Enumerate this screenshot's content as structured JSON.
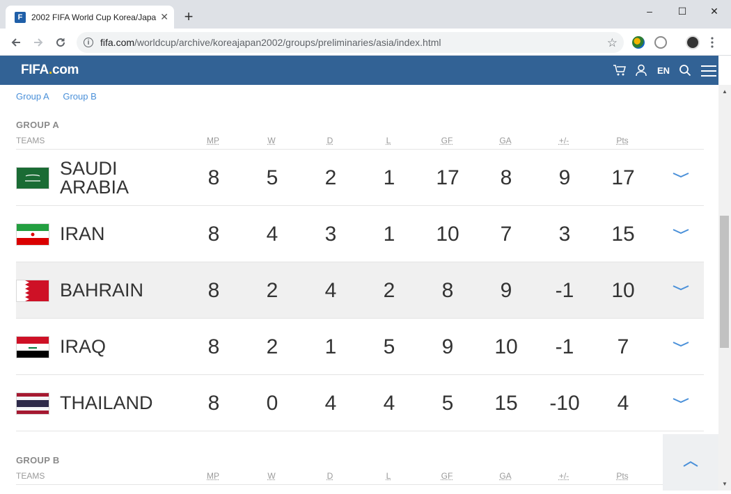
{
  "browser": {
    "tab_title": "2002 FIFA World Cup Korea/Japa",
    "tab_favicon": "F",
    "newtab_label": "+",
    "url_host": "fifa.com",
    "url_path": "/worldcup/archive/koreajapan2002/groups/preliminaries/asia/index.html",
    "minimize": "–",
    "maximize": "☐",
    "close": "✕"
  },
  "site": {
    "logo_main": "FIFA",
    "logo_dot": ".",
    "logo_suffix": "com",
    "lang": "EN"
  },
  "group_links": [
    "Group A",
    "Group B"
  ],
  "columns": [
    "MP",
    "W",
    "D",
    "L",
    "GF",
    "GA",
    "+/-",
    "Pts"
  ],
  "teams_header": "TEAMS",
  "group_a": {
    "title": "GROUP A",
    "rows": [
      {
        "team_line1": "SAUDI",
        "team_line2": "ARABIA",
        "flag": "saudi-arabia",
        "mp": "8",
        "w": "5",
        "d": "2",
        "l": "1",
        "gf": "17",
        "ga": "8",
        "diff": "9",
        "pts": "17"
      },
      {
        "team_line1": "IRAN",
        "team_line2": "",
        "flag": "iran",
        "mp": "8",
        "w": "4",
        "d": "3",
        "l": "1",
        "gf": "10",
        "ga": "7",
        "diff": "3",
        "pts": "15"
      },
      {
        "team_line1": "BAHRAIN",
        "team_line2": "",
        "flag": "bahrain",
        "mp": "8",
        "w": "2",
        "d": "4",
        "l": "2",
        "gf": "8",
        "ga": "9",
        "diff": "-1",
        "pts": "10"
      },
      {
        "team_line1": "IRAQ",
        "team_line2": "",
        "flag": "iraq",
        "mp": "8",
        "w": "2",
        "d": "1",
        "l": "5",
        "gf": "9",
        "ga": "10",
        "diff": "-1",
        "pts": "7"
      },
      {
        "team_line1": "THAILAND",
        "team_line2": "",
        "flag": "thailand",
        "mp": "8",
        "w": "0",
        "d": "4",
        "l": "4",
        "gf": "5",
        "ga": "15",
        "diff": "-10",
        "pts": "4"
      }
    ]
  },
  "group_b": {
    "title": "GROUP B"
  },
  "colors": {
    "fifa_blue": "#326295",
    "link_blue": "#4a90d9",
    "highlight_row": "#f0f0f0"
  }
}
